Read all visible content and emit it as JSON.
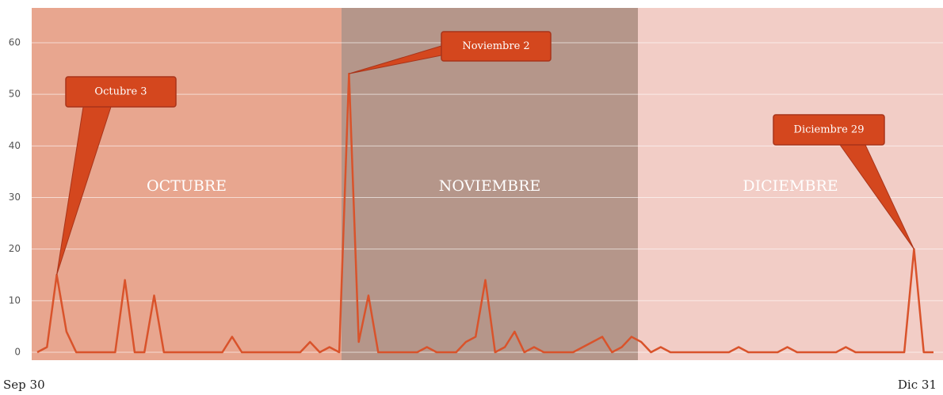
{
  "chart_data": {
    "type": "line",
    "categories": [
      "Sep 30",
      null,
      null,
      null,
      null,
      null,
      null,
      null,
      null,
      null,
      null,
      null,
      null,
      null,
      null,
      null,
      null,
      null,
      null,
      null,
      null,
      null,
      null,
      null,
      null,
      null,
      null,
      null,
      null,
      null,
      null,
      null,
      null,
      null,
      null,
      null,
      null,
      null,
      null,
      null,
      null,
      null,
      null,
      null,
      null,
      null,
      null,
      null,
      null,
      null,
      null,
      null,
      null,
      null,
      null,
      null,
      null,
      null,
      null,
      null,
      null,
      null,
      null,
      null,
      null,
      null,
      null,
      null,
      null,
      null,
      null,
      null,
      null,
      null,
      null,
      null,
      null,
      null,
      null,
      null,
      null,
      null,
      null,
      null,
      null,
      null,
      null,
      null,
      null,
      null,
      null,
      null,
      "Dic 31"
    ],
    "values": [
      0,
      1,
      15,
      4,
      0,
      0,
      0,
      0,
      0,
      14,
      0,
      0,
      11,
      0,
      0,
      0,
      0,
      0,
      0,
      0,
      3,
      0,
      0,
      0,
      0,
      0,
      0,
      0,
      2,
      0,
      1,
      0,
      54,
      2,
      11,
      0,
      0,
      0,
      0,
      0,
      1,
      0,
      0,
      0,
      2,
      3,
      14,
      0,
      1,
      4,
      0,
      1,
      0,
      0,
      0,
      0,
      1,
      2,
      3,
      0,
      1,
      3,
      2,
      0,
      1,
      0,
      0,
      0,
      0,
      0,
      0,
      0,
      1,
      0,
      0,
      0,
      0,
      1,
      0,
      0,
      0,
      0,
      0,
      1,
      0,
      0,
      0,
      0,
      0,
      0,
      20,
      0,
      0
    ],
    "color": "#d9532b",
    "ylim": [
      0,
      60
    ],
    "yticks": [
      0,
      10,
      20,
      30,
      40,
      50,
      60
    ],
    "grid": true,
    "bands": [
      {
        "label": "OCTUBRE",
        "color": "#e8a68f"
      },
      {
        "label": "NOVIEMBRE",
        "color": "#b5968a"
      },
      {
        "label": "DICIEMBRE",
        "color": "#f2cdc6"
      }
    ],
    "annotations": [
      "Octubre 3",
      "Noviembre 2",
      "Diciembre 29"
    ]
  }
}
